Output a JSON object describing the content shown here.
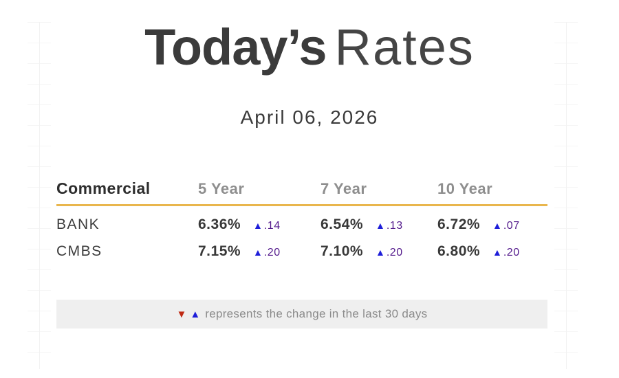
{
  "title": {
    "emphasis": "Today’s",
    "rest": "Rates"
  },
  "date": "April 06, 2026",
  "icons": {
    "up": "▲",
    "down": "▼"
  },
  "table": {
    "label_header": "Commercial",
    "column_headers": [
      "5 Year",
      "7 Year",
      "10 Year"
    ],
    "rows": [
      {
        "label": "BANK",
        "cells": [
          {
            "rate": "6.36%",
            "direction": "up",
            "change": ".14"
          },
          {
            "rate": "6.54%",
            "direction": "up",
            "change": ".13"
          },
          {
            "rate": "6.72%",
            "direction": "up",
            "change": ".07"
          }
        ]
      },
      {
        "label": "CMBS",
        "cells": [
          {
            "rate": "7.15%",
            "direction": "up",
            "change": ".20"
          },
          {
            "rate": "7.10%",
            "direction": "up",
            "change": ".20"
          },
          {
            "rate": "6.80%",
            "direction": "up",
            "change": ".20"
          }
        ]
      }
    ]
  },
  "legend": {
    "text": "represents the change in the last 30 days"
  },
  "colors": {
    "title_text": "#3b3b3b",
    "accent_gold": "#e9b64d",
    "up_blue": "#1e1ed9",
    "down_red": "#bf2a14",
    "change_purple": "#531a8c",
    "legend_band_bg": "#efefef",
    "header_gray": "#8e8e8e"
  },
  "chart_data": {
    "type": "table",
    "title": "Today’s Rates",
    "subtitle": "April 06, 2026",
    "columns": [
      "Commercial",
      "5 Year",
      "7 Year",
      "10 Year"
    ],
    "rows": [
      [
        "BANK",
        "6.36% ▲.14",
        "6.54% ▲.13",
        "6.72% ▲.07"
      ],
      [
        "CMBS",
        "7.15% ▲.20",
        "7.10% ▲.20",
        "6.80% ▲.20"
      ]
    ],
    "rates_percent": {
      "BANK": [
        6.36,
        6.54,
        6.72
      ],
      "CMBS": [
        7.15,
        7.1,
        6.8
      ]
    },
    "change_last_30_days": {
      "BANK": [
        0.14,
        0.13,
        0.07
      ],
      "CMBS": [
        0.2,
        0.2,
        0.2
      ]
    },
    "change_direction": {
      "BANK": [
        "up",
        "up",
        "up"
      ],
      "CMBS": [
        "up",
        "up",
        "up"
      ]
    },
    "note": "▼▲ represents the change in the last 30 days"
  }
}
